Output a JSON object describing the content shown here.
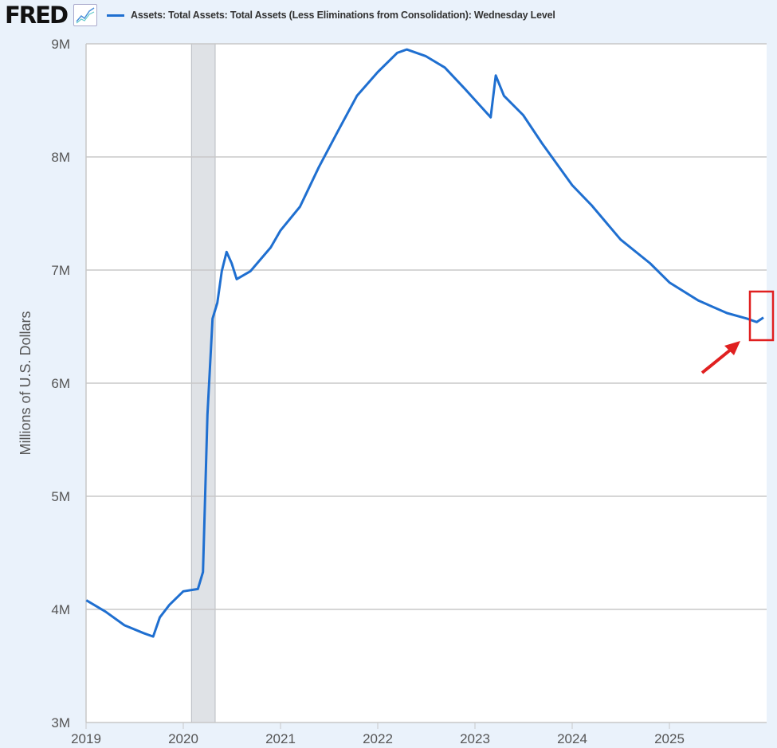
{
  "header": {
    "logo": "FRED",
    "legend_label": "Assets: Total Assets: Total Assets (Less Eliminations from Consolidation): Wednesday Level"
  },
  "colors": {
    "series": "#1f6fd0",
    "background": "#eaf2fb",
    "recession": "#dfe2e6",
    "annotation": "#e02020"
  },
  "chart_data": {
    "type": "line",
    "title": "",
    "xlabel": "",
    "ylabel": "Millions of U.S. Dollars",
    "xlim": [
      "2019-01-01",
      "2026-01-01"
    ],
    "ylim": [
      3000000,
      9000000
    ],
    "grid": true,
    "legend_placement": "top",
    "x_ticks": [
      "2019",
      "2020",
      "2021",
      "2022",
      "2023",
      "2024",
      "2025"
    ],
    "y_ticks": [
      {
        "value": 3000000,
        "label": "3M"
      },
      {
        "value": 4000000,
        "label": "4M"
      },
      {
        "value": 5000000,
        "label": "5M"
      },
      {
        "value": 6000000,
        "label": "6M"
      },
      {
        "value": 7000000,
        "label": "7M"
      },
      {
        "value": 8000000,
        "label": "8M"
      },
      {
        "value": 9000000,
        "label": "9M"
      }
    ],
    "recession": [
      "2020-02-01",
      "2020-04-30"
    ],
    "series": [
      {
        "x": [
          "2019-01-02",
          "2019-03-15",
          "2019-05-25",
          "2019-08-05",
          "2019-09-10",
          "2019-10-05",
          "2019-11-10",
          "2020-01-01",
          "2020-02-25",
          "2020-03-15",
          "2020-04-01",
          "2020-04-20",
          "2020-05-08",
          "2020-05-25",
          "2020-06-12",
          "2020-07-01",
          "2020-07-20",
          "2020-09-10",
          "2020-11-25",
          "2021-01-01",
          "2021-03-15",
          "2021-05-25",
          "2021-08-05",
          "2021-10-15",
          "2022-01-01",
          "2022-03-15",
          "2022-04-20",
          "2022-07-01",
          "2022-09-10",
          "2022-11-25",
          "2023-03-01",
          "2023-03-20",
          "2023-04-20",
          "2023-07-01",
          "2023-09-10",
          "2024-01-01",
          "2024-03-15",
          "2024-07-01",
          "2024-10-20",
          "2025-01-01",
          "2025-04-20",
          "2025-08-05",
          "2025-10-20",
          "2025-11-25",
          "2025-12-20"
        ],
        "y": [
          4080000,
          3980000,
          3860000,
          3790000,
          3760000,
          3930000,
          4040000,
          4160000,
          4180000,
          4330000,
          5720000,
          6570000,
          6710000,
          6990000,
          7160000,
          7060000,
          6920000,
          6990000,
          7200000,
          7350000,
          7560000,
          7910000,
          8230000,
          8540000,
          8750000,
          8920000,
          8950000,
          8890000,
          8790000,
          8600000,
          8350000,
          8720000,
          8540000,
          8370000,
          8120000,
          7750000,
          7570000,
          7270000,
          7060000,
          6890000,
          6730000,
          6620000,
          6570000,
          6540000,
          6580000
        ]
      }
    ]
  }
}
